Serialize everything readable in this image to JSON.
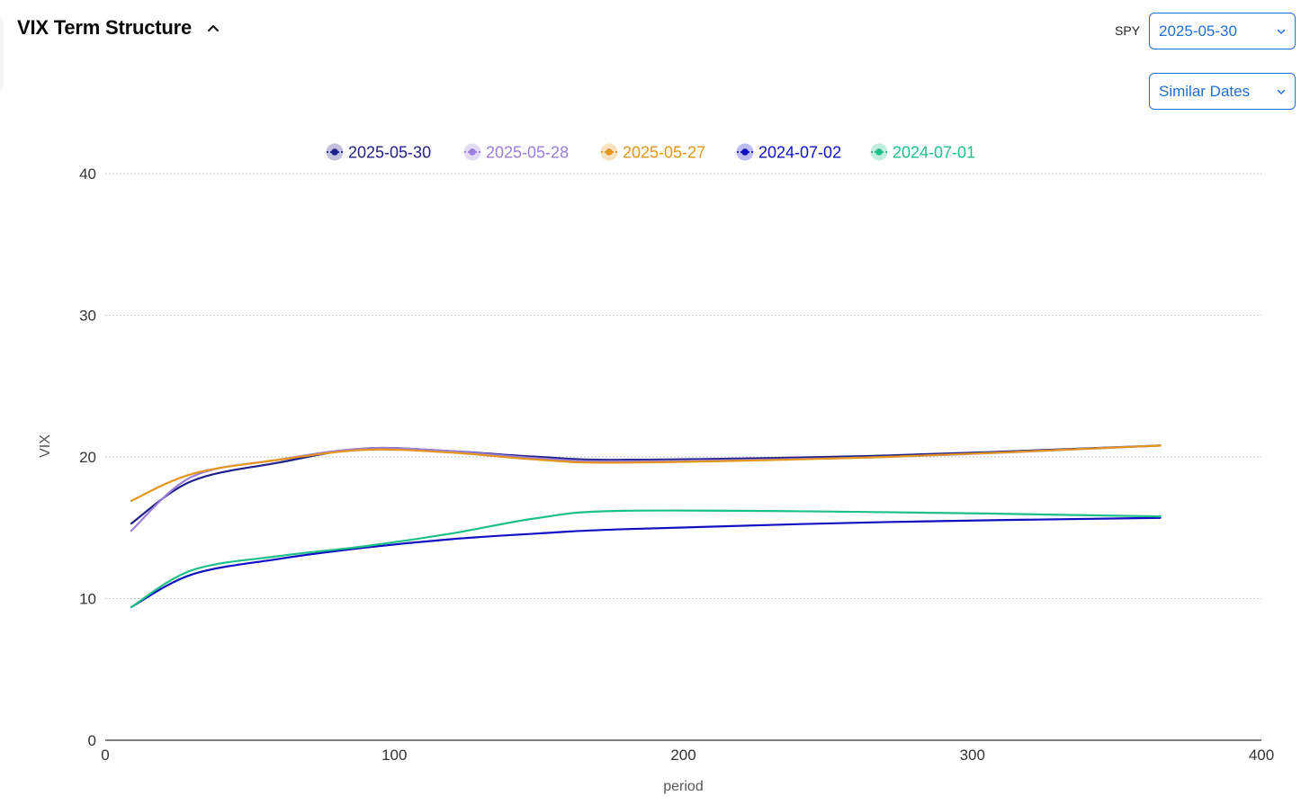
{
  "header": {
    "title": "VIX Term Structure",
    "ticker_label": "SPY",
    "date_select_value": "2025-05-30",
    "similar_select_value": "Similar Dates"
  },
  "chart_data": {
    "type": "line",
    "xlabel": "period",
    "ylabel": "VIX",
    "xlim": [
      0,
      400
    ],
    "ylim": [
      0,
      40
    ],
    "xticks": [
      "0",
      "100",
      "200",
      "300",
      "400"
    ],
    "yticks": [
      "0",
      "10",
      "20",
      "30",
      "40"
    ],
    "grid": "horizontal dotted",
    "legend_position": "top-center",
    "series": [
      {
        "name": "2025-05-30",
        "color": "#1f1f8a",
        "x": [
          9,
          30,
          60,
          90,
          120,
          150,
          180,
          270,
          365
        ],
        "y": [
          15.3,
          18.3,
          19.6,
          20.6,
          20.4,
          20.0,
          19.8,
          20.1,
          20.8
        ]
      },
      {
        "name": "2025-05-28",
        "color": "#9b7ddb",
        "x": [
          9,
          30,
          60,
          90,
          120,
          150,
          180,
          270,
          365
        ],
        "y": [
          14.8,
          18.6,
          19.8,
          20.6,
          20.4,
          19.9,
          19.7,
          20.0,
          20.8
        ]
      },
      {
        "name": "2025-05-27",
        "color": "#e3951c",
        "x": [
          9,
          30,
          60,
          90,
          120,
          150,
          180,
          270,
          365
        ],
        "y": [
          16.9,
          18.8,
          19.8,
          20.5,
          20.3,
          19.8,
          19.6,
          20.0,
          20.8
        ]
      },
      {
        "name": "2024-07-02",
        "color": "#1010c0",
        "x": [
          9,
          30,
          60,
          90,
          120,
          150,
          180,
          270,
          365
        ],
        "y": [
          9.4,
          11.7,
          12.8,
          13.6,
          14.2,
          14.6,
          14.9,
          15.4,
          15.7
        ]
      },
      {
        "name": "2024-07-01",
        "color": "#1fbf8a",
        "x": [
          9,
          30,
          60,
          90,
          120,
          150,
          180,
          270,
          365
        ],
        "y": [
          9.4,
          12.0,
          13.0,
          13.7,
          14.6,
          15.7,
          16.2,
          16.1,
          15.8
        ]
      }
    ]
  }
}
